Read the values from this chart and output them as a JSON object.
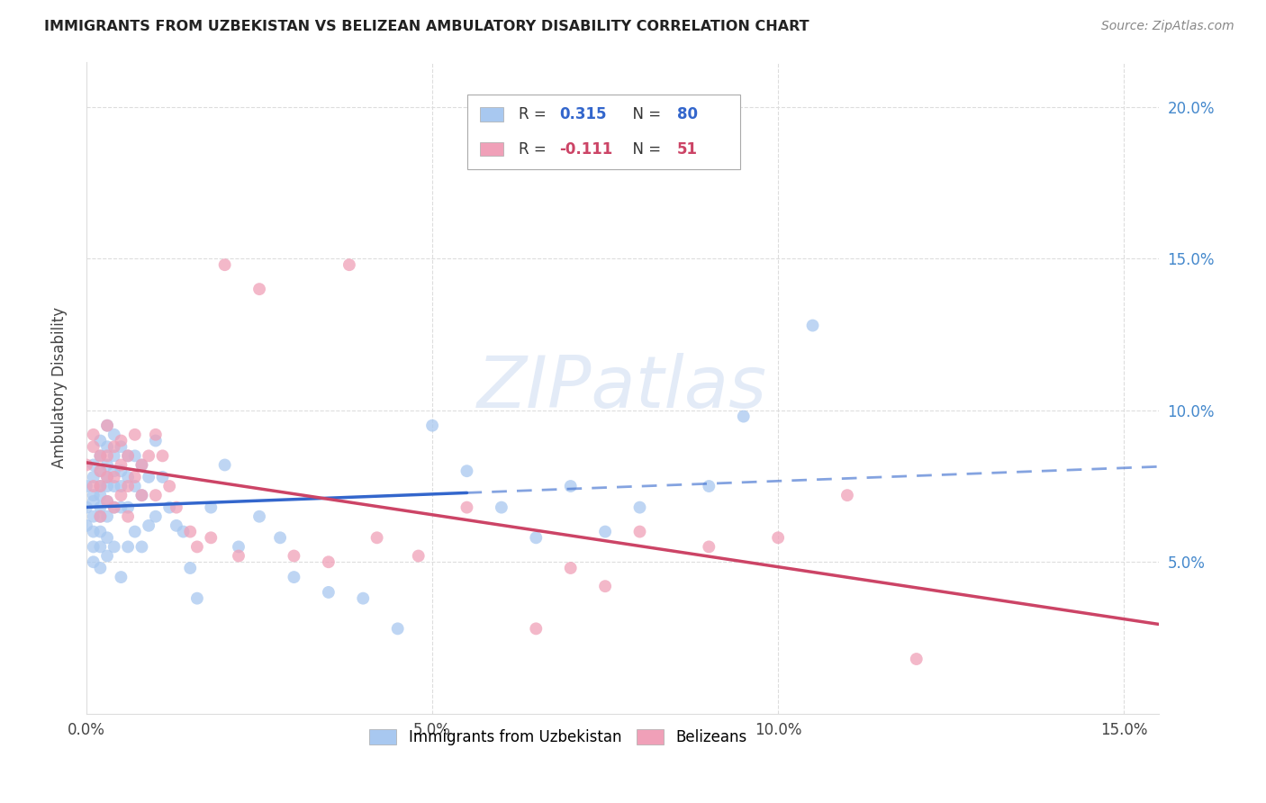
{
  "title": "IMMIGRANTS FROM UZBEKISTAN VS BELIZEAN AMBULATORY DISABILITY CORRELATION CHART",
  "source": "Source: ZipAtlas.com",
  "ylabel": "Ambulatory Disability",
  "legend_label1": "Immigrants from Uzbekistan",
  "legend_label2": "Belizeans",
  "R1": 0.315,
  "N1": 80,
  "R2": -0.111,
  "N2": 51,
  "xlim": [
    0.0,
    0.155
  ],
  "ylim": [
    0.0,
    0.215
  ],
  "xticks": [
    0.0,
    0.05,
    0.1,
    0.15
  ],
  "xtick_labels": [
    "0.0%",
    "5.0%",
    "10.0%",
    "15.0%"
  ],
  "yticks": [
    0.05,
    0.1,
    0.15,
    0.2
  ],
  "ytick_labels": [
    "5.0%",
    "10.0%",
    "15.0%",
    "20.0%"
  ],
  "color_blue": "#A8C8F0",
  "color_pink": "#F0A0B8",
  "line_blue": "#3366CC",
  "line_pink": "#CC4466",
  "watermark_color": "#C8D8F0",
  "blue_x": [
    0.0,
    0.0,
    0.0,
    0.001,
    0.001,
    0.001,
    0.001,
    0.001,
    0.001,
    0.001,
    0.001,
    0.002,
    0.002,
    0.002,
    0.002,
    0.002,
    0.002,
    0.002,
    0.002,
    0.002,
    0.002,
    0.003,
    0.003,
    0.003,
    0.003,
    0.003,
    0.003,
    0.003,
    0.003,
    0.003,
    0.004,
    0.004,
    0.004,
    0.004,
    0.004,
    0.004,
    0.005,
    0.005,
    0.005,
    0.005,
    0.005,
    0.006,
    0.006,
    0.006,
    0.006,
    0.007,
    0.007,
    0.007,
    0.008,
    0.008,
    0.008,
    0.009,
    0.009,
    0.01,
    0.01,
    0.011,
    0.012,
    0.013,
    0.014,
    0.015,
    0.016,
    0.018,
    0.02,
    0.022,
    0.025,
    0.028,
    0.03,
    0.035,
    0.04,
    0.045,
    0.05,
    0.055,
    0.06,
    0.065,
    0.07,
    0.075,
    0.08,
    0.09,
    0.095,
    0.105
  ],
  "blue_y": [
    0.075,
    0.068,
    0.062,
    0.082,
    0.078,
    0.072,
    0.07,
    0.065,
    0.06,
    0.055,
    0.05,
    0.09,
    0.085,
    0.08,
    0.075,
    0.072,
    0.068,
    0.065,
    0.06,
    0.055,
    0.048,
    0.095,
    0.088,
    0.082,
    0.078,
    0.075,
    0.07,
    0.065,
    0.058,
    0.052,
    0.092,
    0.085,
    0.08,
    0.075,
    0.068,
    0.055,
    0.088,
    0.08,
    0.075,
    0.068,
    0.045,
    0.085,
    0.078,
    0.068,
    0.055,
    0.085,
    0.075,
    0.06,
    0.082,
    0.072,
    0.055,
    0.078,
    0.062,
    0.09,
    0.065,
    0.078,
    0.068,
    0.062,
    0.06,
    0.048,
    0.038,
    0.068,
    0.082,
    0.055,
    0.065,
    0.058,
    0.045,
    0.04,
    0.038,
    0.028,
    0.095,
    0.08,
    0.068,
    0.058,
    0.075,
    0.06,
    0.068,
    0.075,
    0.098,
    0.128
  ],
  "pink_x": [
    0.0,
    0.001,
    0.001,
    0.001,
    0.002,
    0.002,
    0.002,
    0.002,
    0.003,
    0.003,
    0.003,
    0.003,
    0.004,
    0.004,
    0.004,
    0.005,
    0.005,
    0.005,
    0.006,
    0.006,
    0.006,
    0.007,
    0.007,
    0.008,
    0.008,
    0.009,
    0.01,
    0.01,
    0.011,
    0.012,
    0.013,
    0.015,
    0.016,
    0.018,
    0.02,
    0.022,
    0.025,
    0.03,
    0.035,
    0.038,
    0.042,
    0.048,
    0.055,
    0.065,
    0.07,
    0.075,
    0.08,
    0.09,
    0.1,
    0.11,
    0.12
  ],
  "pink_y": [
    0.082,
    0.088,
    0.075,
    0.092,
    0.085,
    0.08,
    0.075,
    0.065,
    0.095,
    0.085,
    0.078,
    0.07,
    0.088,
    0.078,
    0.068,
    0.09,
    0.082,
    0.072,
    0.085,
    0.075,
    0.065,
    0.092,
    0.078,
    0.082,
    0.072,
    0.085,
    0.092,
    0.072,
    0.085,
    0.075,
    0.068,
    0.06,
    0.055,
    0.058,
    0.148,
    0.052,
    0.14,
    0.052,
    0.05,
    0.148,
    0.058,
    0.052,
    0.068,
    0.028,
    0.048,
    0.042,
    0.06,
    0.055,
    0.058,
    0.072,
    0.018
  ]
}
